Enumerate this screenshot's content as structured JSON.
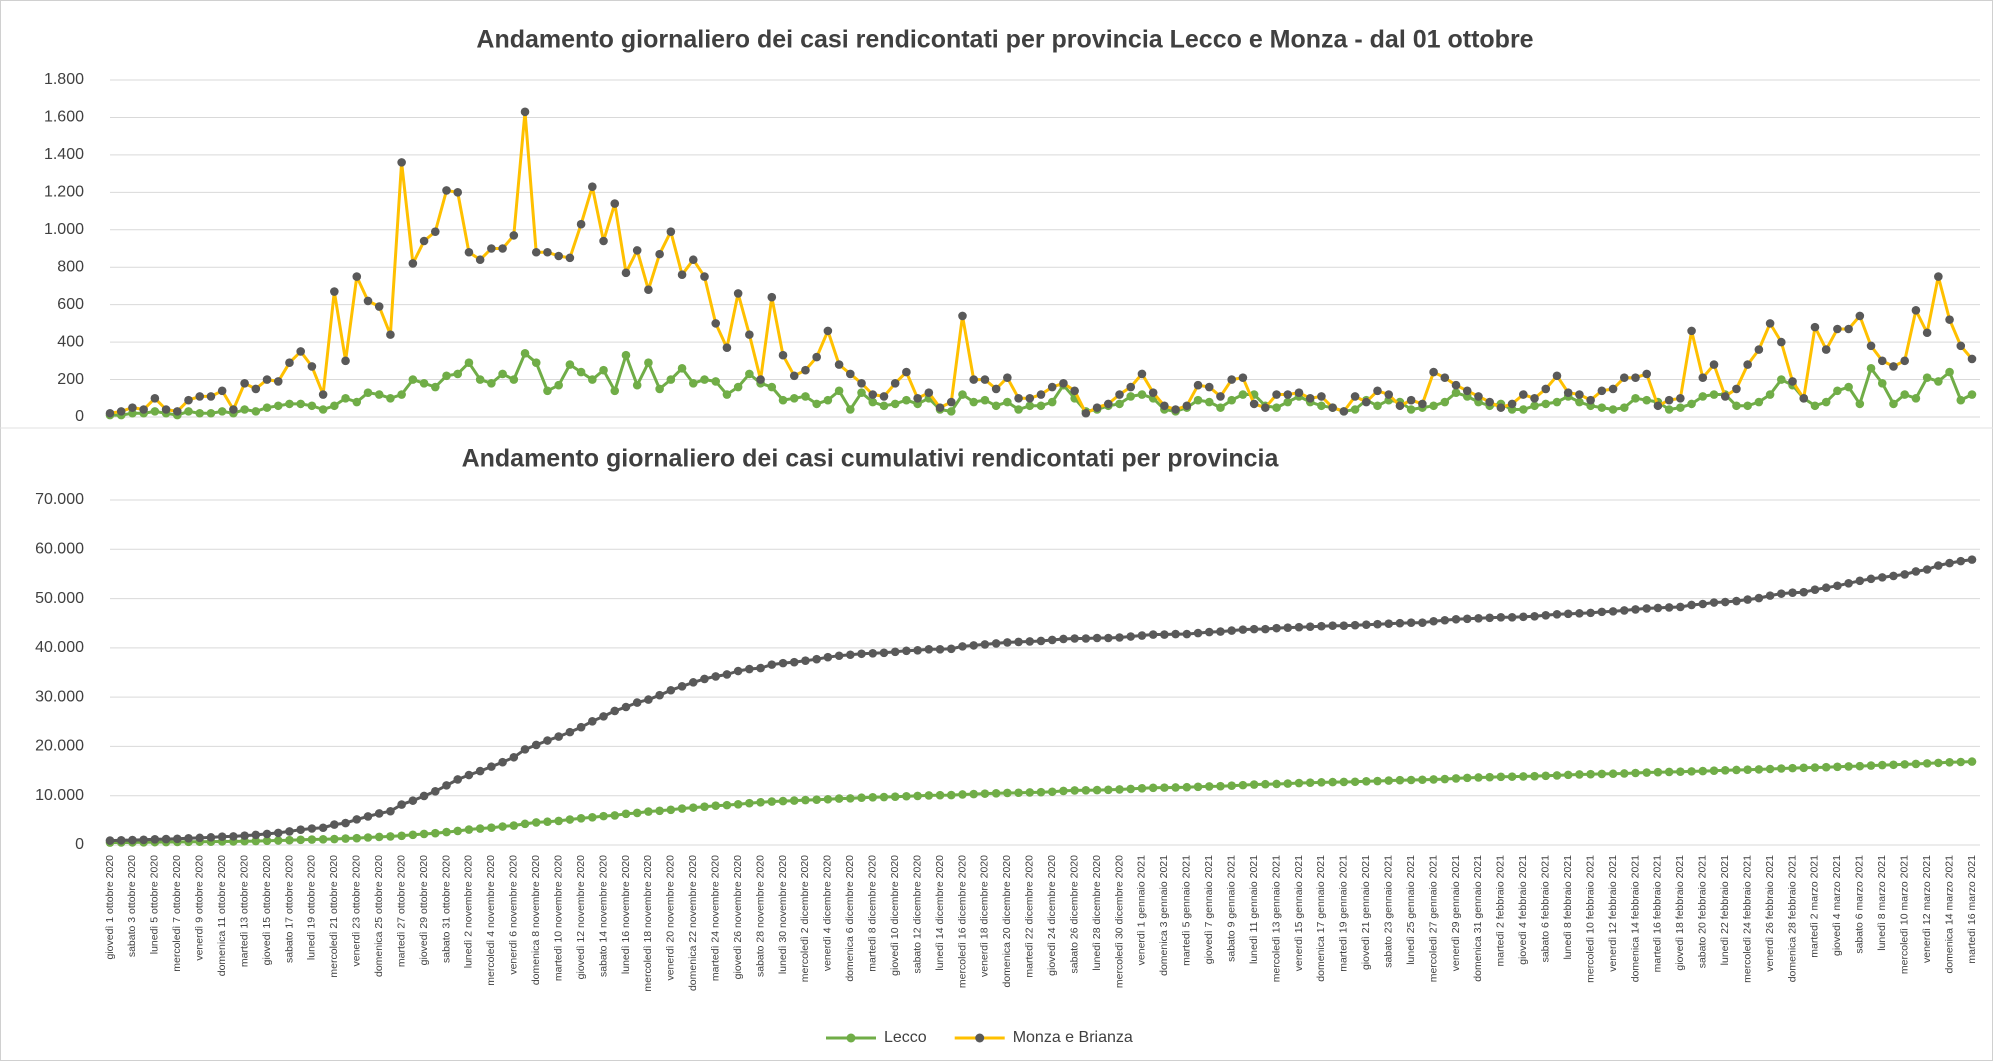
{
  "chart_data": [
    {
      "type": "line",
      "title": "Andamento giornaliero dei casi rendicontati per provincia Lecco e Monza - dal 01 ottobre",
      "ylim": [
        0,
        1800
      ],
      "yticks": [
        0,
        200,
        400,
        600,
        800,
        {
          "value": 1000,
          "label": "1.000"
        },
        {
          "value": 1200,
          "label": "1.200"
        },
        {
          "value": 1400,
          "label": "1.400"
        },
        {
          "value": 1600,
          "label": "1.600"
        },
        {
          "value": 1800,
          "label": "1.800"
        }
      ],
      "grid": true,
      "legend": "bottom",
      "series": [
        {
          "name": "Lecco",
          "color": "#70ad47",
          "marker_color": "#70ad47",
          "values": [
            10,
            10,
            20,
            20,
            30,
            20,
            10,
            30,
            20,
            20,
            30,
            20,
            40,
            30,
            50,
            60,
            70,
            70,
            60,
            40,
            60,
            100,
            80,
            130,
            120,
            100,
            120,
            200,
            180,
            160,
            220,
            230,
            290,
            200,
            180,
            230,
            200,
            340,
            290,
            140,
            170,
            280,
            240,
            200,
            250,
            140,
            330,
            170,
            290,
            150,
            200,
            260,
            180,
            200,
            190,
            120,
            160,
            230,
            180,
            160,
            90,
            100,
            110,
            70,
            90,
            140,
            40,
            130,
            80,
            60,
            70,
            90,
            70,
            100,
            40,
            30,
            120,
            80,
            90,
            60,
            80,
            40,
            60,
            60,
            80,
            170,
            100,
            30,
            40,
            60,
            70,
            110,
            120,
            100,
            40,
            30,
            50,
            90,
            80,
            50,
            90,
            120,
            120,
            60,
            50,
            80,
            110,
            80,
            60,
            50,
            30,
            40,
            90,
            60,
            90,
            80,
            40,
            50,
            60,
            80,
            130,
            110,
            80,
            60,
            70,
            40,
            40,
            60,
            70,
            80,
            110,
            80,
            60,
            50,
            40,
            50,
            100,
            90,
            80,
            40,
            50,
            70,
            110,
            120,
            120,
            60,
            60,
            80,
            120,
            200,
            170,
            100,
            60,
            80,
            140,
            160,
            70,
            260,
            180,
            70,
            120,
            100,
            210,
            190,
            240,
            90,
            120
          ]
        },
        {
          "name": "Monza e Brianza",
          "color": "#ffc000",
          "marker_color": "#595959",
          "values": [
            20,
            30,
            50,
            40,
            100,
            40,
            30,
            90,
            110,
            110,
            140,
            40,
            180,
            150,
            200,
            190,
            290,
            350,
            270,
            120,
            670,
            300,
            750,
            620,
            590,
            440,
            1360,
            820,
            940,
            990,
            1210,
            1200,
            880,
            840,
            900,
            900,
            970,
            1630,
            880,
            880,
            860,
            850,
            1030,
            1230,
            940,
            1140,
            770,
            890,
            680,
            870,
            990,
            760,
            840,
            750,
            500,
            370,
            660,
            440,
            200,
            640,
            330,
            220,
            250,
            320,
            460,
            280,
            230,
            180,
            120,
            110,
            180,
            240,
            100,
            130,
            50,
            80,
            540,
            200,
            200,
            150,
            210,
            100,
            100,
            120,
            160,
            180,
            140,
            20,
            50,
            70,
            120,
            160,
            230,
            130,
            60,
            40,
            60,
            170,
            160,
            110,
            200,
            210,
            70,
            50,
            120,
            120,
            130,
            100,
            110,
            50,
            30,
            110,
            80,
            140,
            120,
            60,
            90,
            70,
            240,
            210,
            170,
            140,
            110,
            80,
            50,
            70,
            120,
            100,
            150,
            220,
            130,
            120,
            90,
            140,
            150,
            210,
            210,
            230,
            60,
            90,
            100,
            460,
            210,
            280,
            110,
            150,
            280,
            360,
            500,
            400,
            190,
            100,
            480,
            360,
            470,
            470,
            540,
            380,
            300,
            270,
            300,
            570,
            450,
            750,
            520,
            380,
            310
          ]
        }
      ]
    },
    {
      "type": "line",
      "title": "Andamento giornaliero dei casi cumulativi rendicontati per provincia",
      "ylim": [
        0,
        70000
      ],
      "yticks": [
        0,
        {
          "value": 10000,
          "label": "10.000"
        },
        {
          "value": 20000,
          "label": "20.000"
        },
        {
          "value": 30000,
          "label": "30.000"
        },
        {
          "value": 40000,
          "label": "40.000"
        },
        {
          "value": 50000,
          "label": "50.000"
        },
        {
          "value": 60000,
          "label": "60.000"
        },
        {
          "value": 70000,
          "label": "70.000"
        }
      ],
      "grid": true,
      "categories": [
        "giovedì 1 ottobre 2020",
        null,
        "sabato 3 ottobre 2020",
        null,
        "lunedì 5 ottobre 2020",
        null,
        "mercoledì 7 ottobre 2020",
        null,
        "venerdì 9 ottobre 2020",
        null,
        "domenica 11 ottobre 2020",
        null,
        "martedì 13 ottobre 2020",
        null,
        "giovedì 15 ottobre 2020",
        null,
        "sabato 17 ottobre 2020",
        null,
        "lunedì 19 ottobre 2020",
        null,
        "mercoledì 21 ottobre 2020",
        null,
        "venerdì 23 ottobre 2020",
        null,
        "domenica 25 ottobre 2020",
        null,
        "martedì 27 ottobre 2020",
        null,
        "giovedì 29 ottobre 2020",
        null,
        "sabato 31 ottobre 2020",
        null,
        "lunedì 2 novembre 2020",
        null,
        "mercoledì 4 novembre 2020",
        null,
        "venerdì 6 novembre 2020",
        null,
        "domenica 8 novembre 2020",
        null,
        "martedì 10 novembre 2020",
        null,
        "giovedì 12 novembre 2020",
        null,
        "sabato 14 novembre 2020",
        null,
        "lunedì 16 novembre 2020",
        null,
        "mercoledì 18 novembre 2020",
        null,
        "venerdì 20 novembre 2020",
        null,
        "domenica 22 novembre 2020",
        null,
        "martedì 24 novembre 2020",
        null,
        "giovedì 26 novembre 2020",
        null,
        "sabato 28 novembre 2020",
        null,
        "lunedì 30 novembre 2020",
        null,
        "mercoledì 2 dicembre 2020",
        null,
        "venerdì 4 dicembre 2020",
        null,
        "domenica 6 dicembre 2020",
        null,
        "martedì 8 dicembre 2020",
        null,
        "giovedì 10 dicembre 2020",
        null,
        "sabato 12 dicembre 2020",
        null,
        "lunedì 14 dicembre 2020",
        null,
        "mercoledì 16 dicembre 2020",
        null,
        "venerdì 18 dicembre 2020",
        null,
        "domenica 20 dicembre 2020",
        null,
        "martedì 22 dicembre 2020",
        null,
        "giovedì 24 dicembre 2020",
        null,
        "sabato 26 dicembre 2020",
        null,
        "lunedì 28 dicembre 2020",
        null,
        "mercoledì 30 dicembre 2020",
        null,
        "venerdì 1 gennaio 2021",
        null,
        "domenica 3 gennaio 2021",
        null,
        "martedì 5 gennaio 2021",
        null,
        "giovedì 7 gennaio 2021",
        null,
        "sabato 9 gennaio 2021",
        null,
        "lunedì 11 gennaio 2021",
        null,
        "mercoledì 13 gennaio 2021",
        null,
        "venerdì 15 gennaio 2021",
        null,
        "domenica 17 gennaio 2021",
        null,
        "martedì 19 gennaio 2021",
        null,
        "giovedì 21 gennaio 2021",
        null,
        "sabato 23 gennaio 2021",
        null,
        "lunedì 25 gennaio 2021",
        null,
        "mercoledì 27 gennaio 2021",
        null,
        "venerdì 29 gennaio 2021",
        null,
        "domenica 31 gennaio 2021",
        null,
        "martedì 2 febbraio 2021",
        null,
        "giovedì 4 febbraio 2021",
        null,
        "sabato 6 febbraio 2021",
        null,
        "lunedì 8 febbraio 2021",
        null,
        "mercoledì 10 febbraio 2021",
        null,
        "venerdì 12 febbraio 2021",
        null,
        "domenica 14 febbraio 2021",
        null,
        "martedì 16 febbraio 2021",
        null,
        "giovedì 18 febbraio 2021",
        null,
        "sabato 20 febbraio 2021",
        null,
        "lunedì 22 febbraio 2021",
        null,
        "mercoledì 24 febbraio 2021",
        null,
        "venerdì 26 febbraio 2021",
        null,
        "domenica 28 febbraio 2021",
        null,
        "martedì 2 marzo 2021",
        null,
        "giovedì 4 marzo 2021",
        null,
        "sabato 6 marzo 2021",
        null,
        "lunedì 8 marzo 2021",
        null,
        "mercoledì 10 marzo 2021",
        null,
        "venerdì 12 marzo 2021",
        null,
        "domenica 14 marzo 2021",
        null,
        "martedì 16 marzo 2021"
      ],
      "series": [
        {
          "color": "#70ad47",
          "marker_color": "#70ad47",
          "values": [
            500,
            510,
            530,
            550,
            580,
            600,
            610,
            640,
            660,
            680,
            710,
            730,
            770,
            800,
            850,
            910,
            980,
            1050,
            1110,
            1150,
            1210,
            1310,
            1390,
            1520,
            1640,
            1740,
            1860,
            2060,
            2240,
            2400,
            2620,
            2850,
            3140,
            3340,
            3520,
            3750,
            3950,
            4290,
            4580,
            4720,
            4890,
            5170,
            5410,
            5610,
            5860,
            6000,
            6330,
            6500,
            6790,
            6940,
            7140,
            7400,
            7580,
            7780,
            7970,
            8090,
            8250,
            8480,
            8660,
            8820,
            8910,
            9010,
            9120,
            9190,
            9280,
            9420,
            9460,
            9590,
            9670,
            9730,
            9800,
            9890,
            9960,
            10060,
            10100,
            10130,
            10250,
            10330,
            10420,
            10480,
            10560,
            10600,
            10660,
            10720,
            10800,
            10970,
            11070,
            11100,
            11140,
            11200,
            11270,
            11380,
            11500,
            11600,
            11640,
            11670,
            11720,
            11810,
            11890,
            11940,
            12030,
            12150,
            12270,
            12330,
            12380,
            12460,
            12570,
            12650,
            12710,
            12760,
            12790,
            12830,
            12920,
            12980,
            13070,
            13150,
            13190,
            13240,
            13300,
            13380,
            13510,
            13620,
            13700,
            13760,
            13830,
            13870,
            13910,
            13970,
            14040,
            14120,
            14230,
            14310,
            14370,
            14420,
            14460,
            14510,
            14610,
            14700,
            14780,
            14820,
            14870,
            14940,
            15000,
            15080,
            15160,
            15220,
            15280,
            15340,
            15420,
            15520,
            15600,
            15660,
            15720,
            15780,
            15860,
            15940,
            16000,
            16120,
            16220,
            16280,
            16360,
            16440,
            16560,
            16660,
            16780,
            16840,
            16920
          ]
        },
        {
          "color": "#595959",
          "marker_color": "#595959",
          "values": [
            900,
            950,
            1000,
            1050,
            1150,
            1200,
            1250,
            1350,
            1450,
            1550,
            1700,
            1750,
            1900,
            2050,
            2250,
            2450,
            2750,
            3100,
            3350,
            3500,
            4150,
            4450,
            5200,
            5800,
            6400,
            6850,
            8200,
            9000,
            9950,
            10900,
            12100,
            13300,
            14200,
            15000,
            15900,
            16800,
            17800,
            19400,
            20300,
            21200,
            22000,
            22900,
            23900,
            25100,
            26100,
            27200,
            28000,
            28900,
            29500,
            30400,
            31400,
            32200,
            33000,
            33700,
            34200,
            34600,
            35300,
            35700,
            35900,
            36600,
            36900,
            37100,
            37400,
            37700,
            38100,
            38400,
            38600,
            38800,
            38900,
            39000,
            39200,
            39400,
            39500,
            39700,
            39700,
            39800,
            40300,
            40500,
            40700,
            40900,
            41100,
            41200,
            41300,
            41400,
            41600,
            41800,
            41900,
            41900,
            42000,
            42000,
            42100,
            42300,
            42500,
            42700,
            42700,
            42800,
            42800,
            43000,
            43200,
            43300,
            43500,
            43700,
            43800,
            43800,
            44000,
            44100,
            44200,
            44300,
            44400,
            44500,
            44500,
            44600,
            44700,
            44800,
            44900,
            45000,
            45100,
            45100,
            45400,
            45600,
            45800,
            45900,
            46000,
            46100,
            46200,
            46200,
            46300,
            46400,
            46600,
            46800,
            46900,
            47000,
            47100,
            47300,
            47400,
            47600,
            47800,
            48000,
            48100,
            48200,
            48300,
            48700,
            48900,
            49200,
            49300,
            49500,
            49800,
            50100,
            50600,
            51000,
            51200,
            51300,
            51800,
            52200,
            52600,
            53100,
            53600,
            54000,
            54300,
            54600,
            54900,
            55500,
            55900,
            56700,
            57200,
            57600,
            57900
          ]
        }
      ]
    }
  ]
}
